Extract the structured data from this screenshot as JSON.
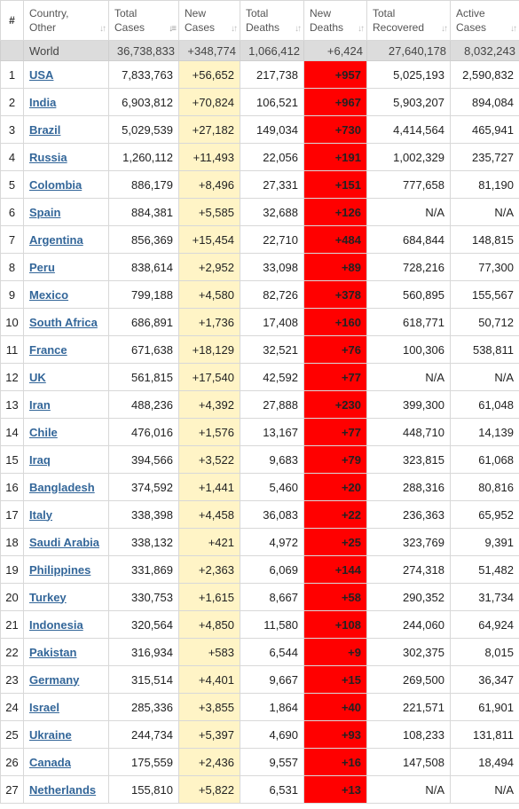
{
  "headers": {
    "rank": "#",
    "country_line1": "Country,",
    "country_line2": "Other",
    "total_cases_line1": "Total",
    "total_cases_line2": "Cases",
    "new_cases_line1": "New",
    "new_cases_line2": "Cases",
    "total_deaths_line1": "Total",
    "total_deaths_line2": "Deaths",
    "new_deaths_line1": "New",
    "new_deaths_line2": "Deaths",
    "total_recovered_line1": "Total",
    "total_recovered_line2": "Recovered",
    "active_cases_line1": "Active",
    "active_cases_line2": "Cases"
  },
  "world": {
    "name": "World",
    "total_cases": "36,738,833",
    "new_cases": "+348,774",
    "total_deaths": "1,066,412",
    "new_deaths": "+6,424",
    "total_recovered": "27,640,178",
    "active_cases": "8,032,243"
  },
  "colors": {
    "new_cases_bg": "#fff4c6",
    "new_deaths_bg": "#ff0000",
    "link": "#336699",
    "world_bg": "#dcdcdc"
  },
  "rows": [
    {
      "rank": "1",
      "country": "USA",
      "total_cases": "7,833,763",
      "new_cases": "+56,652",
      "total_deaths": "217,738",
      "new_deaths": "+957",
      "total_recovered": "5,025,193",
      "active_cases": "2,590,832"
    },
    {
      "rank": "2",
      "country": "India",
      "total_cases": "6,903,812",
      "new_cases": "+70,824",
      "total_deaths": "106,521",
      "new_deaths": "+967",
      "total_recovered": "5,903,207",
      "active_cases": "894,084"
    },
    {
      "rank": "3",
      "country": "Brazil",
      "total_cases": "5,029,539",
      "new_cases": "+27,182",
      "total_deaths": "149,034",
      "new_deaths": "+730",
      "total_recovered": "4,414,564",
      "active_cases": "465,941"
    },
    {
      "rank": "4",
      "country": "Russia",
      "total_cases": "1,260,112",
      "new_cases": "+11,493",
      "total_deaths": "22,056",
      "new_deaths": "+191",
      "total_recovered": "1,002,329",
      "active_cases": "235,727"
    },
    {
      "rank": "5",
      "country": "Colombia",
      "total_cases": "886,179",
      "new_cases": "+8,496",
      "total_deaths": "27,331",
      "new_deaths": "+151",
      "total_recovered": "777,658",
      "active_cases": "81,190"
    },
    {
      "rank": "6",
      "country": "Spain",
      "total_cases": "884,381",
      "new_cases": "+5,585",
      "total_deaths": "32,688",
      "new_deaths": "+126",
      "total_recovered": "N/A",
      "active_cases": "N/A"
    },
    {
      "rank": "7",
      "country": "Argentina",
      "total_cases": "856,369",
      "new_cases": "+15,454",
      "total_deaths": "22,710",
      "new_deaths": "+484",
      "total_recovered": "684,844",
      "active_cases": "148,815"
    },
    {
      "rank": "8",
      "country": "Peru",
      "total_cases": "838,614",
      "new_cases": "+2,952",
      "total_deaths": "33,098",
      "new_deaths": "+89",
      "total_recovered": "728,216",
      "active_cases": "77,300"
    },
    {
      "rank": "9",
      "country": "Mexico",
      "total_cases": "799,188",
      "new_cases": "+4,580",
      "total_deaths": "82,726",
      "new_deaths": "+378",
      "total_recovered": "560,895",
      "active_cases": "155,567"
    },
    {
      "rank": "10",
      "country": "South Africa",
      "total_cases": "686,891",
      "new_cases": "+1,736",
      "total_deaths": "17,408",
      "new_deaths": "+160",
      "total_recovered": "618,771",
      "active_cases": "50,712"
    },
    {
      "rank": "11",
      "country": "France",
      "total_cases": "671,638",
      "new_cases": "+18,129",
      "total_deaths": "32,521",
      "new_deaths": "+76",
      "total_recovered": "100,306",
      "active_cases": "538,811"
    },
    {
      "rank": "12",
      "country": "UK",
      "total_cases": "561,815",
      "new_cases": "+17,540",
      "total_deaths": "42,592",
      "new_deaths": "+77",
      "total_recovered": "N/A",
      "active_cases": "N/A"
    },
    {
      "rank": "13",
      "country": "Iran",
      "total_cases": "488,236",
      "new_cases": "+4,392",
      "total_deaths": "27,888",
      "new_deaths": "+230",
      "total_recovered": "399,300",
      "active_cases": "61,048"
    },
    {
      "rank": "14",
      "country": "Chile",
      "total_cases": "476,016",
      "new_cases": "+1,576",
      "total_deaths": "13,167",
      "new_deaths": "+77",
      "total_recovered": "448,710",
      "active_cases": "14,139"
    },
    {
      "rank": "15",
      "country": "Iraq",
      "total_cases": "394,566",
      "new_cases": "+3,522",
      "total_deaths": "9,683",
      "new_deaths": "+79",
      "total_recovered": "323,815",
      "active_cases": "61,068"
    },
    {
      "rank": "16",
      "country": "Bangladesh",
      "total_cases": "374,592",
      "new_cases": "+1,441",
      "total_deaths": "5,460",
      "new_deaths": "+20",
      "total_recovered": "288,316",
      "active_cases": "80,816"
    },
    {
      "rank": "17",
      "country": "Italy",
      "total_cases": "338,398",
      "new_cases": "+4,458",
      "total_deaths": "36,083",
      "new_deaths": "+22",
      "total_recovered": "236,363",
      "active_cases": "65,952"
    },
    {
      "rank": "18",
      "country": "Saudi Arabia",
      "total_cases": "338,132",
      "new_cases": "+421",
      "total_deaths": "4,972",
      "new_deaths": "+25",
      "total_recovered": "323,769",
      "active_cases": "9,391"
    },
    {
      "rank": "19",
      "country": "Philippines",
      "total_cases": "331,869",
      "new_cases": "+2,363",
      "total_deaths": "6,069",
      "new_deaths": "+144",
      "total_recovered": "274,318",
      "active_cases": "51,482"
    },
    {
      "rank": "20",
      "country": "Turkey",
      "total_cases": "330,753",
      "new_cases": "+1,615",
      "total_deaths": "8,667",
      "new_deaths": "+58",
      "total_recovered": "290,352",
      "active_cases": "31,734"
    },
    {
      "rank": "21",
      "country": "Indonesia",
      "total_cases": "320,564",
      "new_cases": "+4,850",
      "total_deaths": "11,580",
      "new_deaths": "+108",
      "total_recovered": "244,060",
      "active_cases": "64,924"
    },
    {
      "rank": "22",
      "country": "Pakistan",
      "total_cases": "316,934",
      "new_cases": "+583",
      "total_deaths": "6,544",
      "new_deaths": "+9",
      "total_recovered": "302,375",
      "active_cases": "8,015"
    },
    {
      "rank": "23",
      "country": "Germany",
      "total_cases": "315,514",
      "new_cases": "+4,401",
      "total_deaths": "9,667",
      "new_deaths": "+15",
      "total_recovered": "269,500",
      "active_cases": "36,347"
    },
    {
      "rank": "24",
      "country": "Israel",
      "total_cases": "285,336",
      "new_cases": "+3,855",
      "total_deaths": "1,864",
      "new_deaths": "+40",
      "total_recovered": "221,571",
      "active_cases": "61,901"
    },
    {
      "rank": "25",
      "country": "Ukraine",
      "total_cases": "244,734",
      "new_cases": "+5,397",
      "total_deaths": "4,690",
      "new_deaths": "+93",
      "total_recovered": "108,233",
      "active_cases": "131,811"
    },
    {
      "rank": "26",
      "country": "Canada",
      "total_cases": "175,559",
      "new_cases": "+2,436",
      "total_deaths": "9,557",
      "new_deaths": "+16",
      "total_recovered": "147,508",
      "active_cases": "18,494"
    },
    {
      "rank": "27",
      "country": "Netherlands",
      "total_cases": "155,810",
      "new_cases": "+5,822",
      "total_deaths": "6,531",
      "new_deaths": "+13",
      "total_recovered": "N/A",
      "active_cases": "N/A"
    }
  ]
}
